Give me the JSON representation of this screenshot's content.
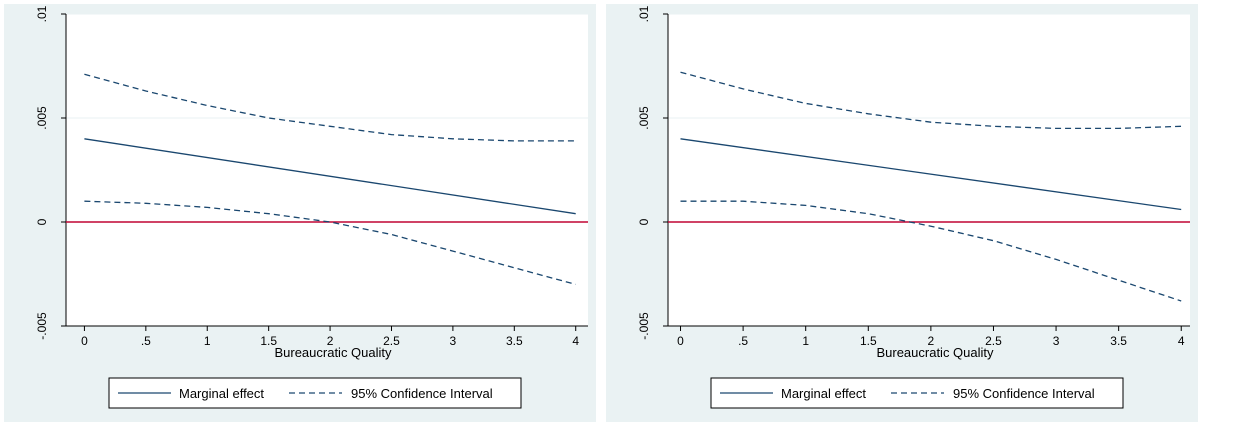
{
  "colors": {
    "panel_background": "#eaf2f3",
    "plot_background": "#ffffff",
    "grid": "#eaf2f3",
    "series_line": "#1a476f",
    "reference_line": "#c10534",
    "legend_border": "#000000"
  },
  "chart_data": [
    {
      "type": "line",
      "title": "",
      "xlabel": "Bureaucratic Quality",
      "ylabel": "",
      "xlim": [
        -0.15,
        4.1
      ],
      "ylim": [
        -0.005,
        0.01
      ],
      "x_ticks": [
        0,
        0.5,
        1,
        1.5,
        2,
        2.5,
        3,
        3.5,
        4
      ],
      "x_tick_labels": [
        "0",
        ".5",
        "1",
        "1.5",
        "2",
        "2.5",
        "3",
        "3.5",
        "4"
      ],
      "y_ticks": [
        -0.005,
        0,
        0.005,
        0.01
      ],
      "y_tick_labels": [
        "-.005",
        "0",
        ".005",
        ".01"
      ],
      "grid": true,
      "reference_line_y": 0,
      "legend": {
        "placement": "bottom",
        "entries": [
          {
            "label": "Marginal effect",
            "style": "solid"
          },
          {
            "label": "95% Confidence Interval",
            "style": "dashed"
          }
        ]
      },
      "series": [
        {
          "name": "Marginal effect",
          "style": "solid",
          "x": [
            0,
            4
          ],
          "y": [
            0.004,
            0.0004
          ]
        },
        {
          "name": "95% Confidence Interval",
          "style": "dashed",
          "x": [
            0,
            0.5,
            1,
            1.5,
            2,
            2.5,
            3,
            3.5,
            4
          ],
          "y": [
            0.0071,
            0.0063,
            0.0056,
            0.005,
            0.0046,
            0.0042,
            0.004,
            0.0039,
            0.0039
          ]
        },
        {
          "name": "95% Confidence Interval",
          "style": "dashed",
          "x": [
            0,
            0.5,
            1,
            1.5,
            2,
            2.5,
            3,
            3.5,
            4
          ],
          "y": [
            0.001,
            0.0009,
            0.0007,
            0.0004,
            0.0,
            -0.0006,
            -0.0014,
            -0.0022,
            -0.003
          ]
        }
      ]
    },
    {
      "type": "line",
      "title": "",
      "xlabel": "Bureaucratic Quality",
      "ylabel": "",
      "xlim": [
        -0.1,
        4.07
      ],
      "ylim": [
        -0.005,
        0.01
      ],
      "x_ticks": [
        0,
        0.5,
        1,
        1.5,
        2,
        2.5,
        3,
        3.5,
        4
      ],
      "x_tick_labels": [
        "0",
        ".5",
        "1",
        "1.5",
        "2",
        "2.5",
        "3",
        "3.5",
        "4"
      ],
      "y_ticks": [
        -0.005,
        0,
        0.005,
        0.01
      ],
      "y_tick_labels": [
        "-.005",
        "0",
        ".005",
        ".01"
      ],
      "grid": true,
      "reference_line_y": 0,
      "legend": {
        "placement": "bottom",
        "entries": [
          {
            "label": "Marginal effect",
            "style": "solid"
          },
          {
            "label": "95% Confidence Interval",
            "style": "dashed"
          }
        ]
      },
      "series": [
        {
          "name": "Marginal effect",
          "style": "solid",
          "x": [
            0,
            4
          ],
          "y": [
            0.004,
            0.0006
          ]
        },
        {
          "name": "95% Confidence Interval",
          "style": "dashed",
          "x": [
            0,
            0.5,
            1,
            1.5,
            2,
            2.5,
            3,
            3.5,
            4
          ],
          "y": [
            0.0072,
            0.0064,
            0.0057,
            0.0052,
            0.0048,
            0.0046,
            0.0045,
            0.0045,
            0.0046
          ]
        },
        {
          "name": "95% Confidence Interval",
          "style": "dashed",
          "x": [
            0,
            0.5,
            1,
            1.5,
            2,
            2.5,
            3,
            3.5,
            4
          ],
          "y": [
            0.001,
            0.001,
            0.0008,
            0.0004,
            -0.0002,
            -0.0009,
            -0.0018,
            -0.0028,
            -0.0038
          ]
        }
      ]
    }
  ]
}
